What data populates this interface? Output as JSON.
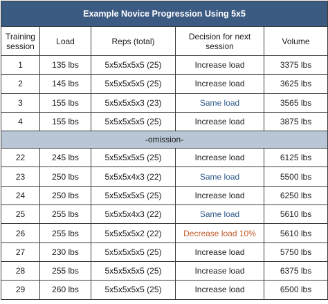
{
  "title": "Example Novice Progression Using 5x5",
  "headers": [
    "Training session",
    "Load",
    "Reps (total)",
    "Decision for next session",
    "Volume"
  ],
  "rows_before": [
    {
      "session": "1",
      "load": "135 lbs",
      "reps": "5x5x5x5x5 (25)",
      "decision": "Increase load",
      "decision_type": "increase",
      "volume": "3375 lbs"
    },
    {
      "session": "2",
      "load": "145 lbs",
      "reps": "5x5x5x5x5 (25)",
      "decision": "Increase load",
      "decision_type": "increase",
      "volume": "3625 lbs"
    },
    {
      "session": "3",
      "load": "155 lbs",
      "reps": "5x5x5x5x3 (23)",
      "decision": "Same load",
      "decision_type": "same",
      "volume": "3565 lbs"
    },
    {
      "session": "4",
      "load": "155 lbs",
      "reps": "5x5x5x5x5 (25)",
      "decision": "Increase load",
      "decision_type": "increase",
      "volume": "3875 lbs"
    }
  ],
  "omission_label": "-omission-",
  "rows_after": [
    {
      "session": "22",
      "load": "245 lbs",
      "reps": "5x5x5x5x5 (25)",
      "decision": "Increase load",
      "decision_type": "increase",
      "volume": "6125 lbs"
    },
    {
      "session": "23",
      "load": "250 lbs",
      "reps": "5x5x5x4x3 (22)",
      "decision": "Same load",
      "decision_type": "same",
      "volume": "5500 lbs"
    },
    {
      "session": "24",
      "load": "250 lbs",
      "reps": "5x5x5x5x5 (25)",
      "decision": "Increase load",
      "decision_type": "increase",
      "volume": "6250 lbs"
    },
    {
      "session": "25",
      "load": "255 lbs",
      "reps": "5x5x5x4x3 (22)",
      "decision": "Same load",
      "decision_type": "same",
      "volume": "5610 lbs"
    },
    {
      "session": "26",
      "load": "255 lbs",
      "reps": "5x5x5x5x2 (22)",
      "decision": "Decrease load 10%",
      "decision_type": "decrease",
      "volume": "5610 lbs"
    },
    {
      "session": "27",
      "load": "230 lbs",
      "reps": "5x5x5x5x5 (25)",
      "decision": "Increase load",
      "decision_type": "increase",
      "volume": "5750 lbs"
    },
    {
      "session": "28",
      "load": "255 lbs",
      "reps": "5x5x5x5x5 (25)",
      "decision": "Increase load",
      "decision_type": "increase",
      "volume": "6375 lbs"
    },
    {
      "session": "29",
      "load": "260 lbs",
      "reps": "5x5x5x5x5 (25)",
      "decision": "Increase load",
      "decision_type": "increase",
      "volume": "6500 lbs"
    }
  ],
  "colors": {
    "header_bg": "#3b5b83",
    "omission_bg": "#b9c6d6",
    "same_load": "#2f5b8a",
    "decrease_load": "#c25a2b"
  }
}
